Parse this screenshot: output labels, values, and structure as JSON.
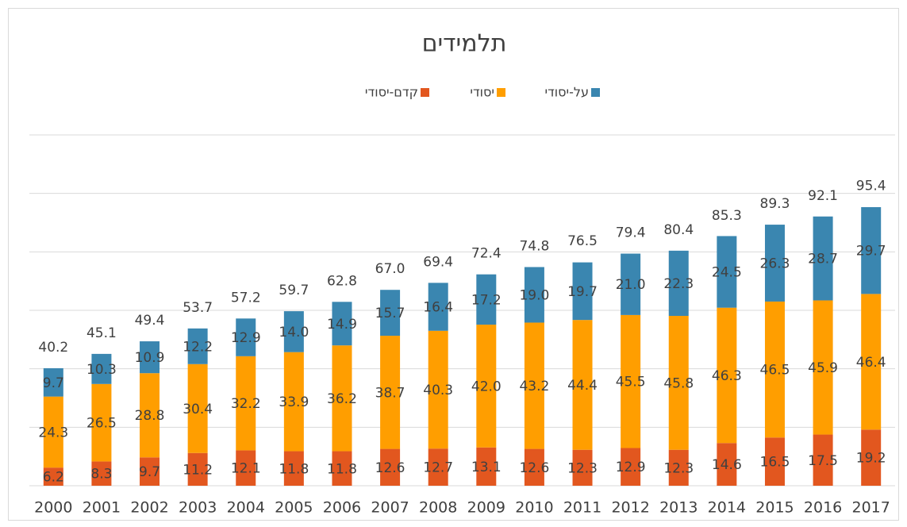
{
  "chart_data": {
    "type": "bar",
    "stacked": true,
    "title": "תלמידים",
    "categories": [
      "2000",
      "2001",
      "2002",
      "2003",
      "2004",
      "2005",
      "2006",
      "2007",
      "2008",
      "2009",
      "2010",
      "2011",
      "2012",
      "2013",
      "2014",
      "2015",
      "2016",
      "2017"
    ],
    "series": [
      {
        "name": "קדם-יסודי",
        "color": "#e2571f",
        "values": [
          6.2,
          8.3,
          9.7,
          11.2,
          12.1,
          11.8,
          11.8,
          12.6,
          12.7,
          13.1,
          12.6,
          12.3,
          12.9,
          12.3,
          14.6,
          16.5,
          17.5,
          19.2
        ]
      },
      {
        "name": "יסודי",
        "color": "#ff9e00",
        "values": [
          24.3,
          26.5,
          28.8,
          30.4,
          32.2,
          33.9,
          36.2,
          38.7,
          40.3,
          42.0,
          43.2,
          44.4,
          45.5,
          45.8,
          46.3,
          46.5,
          45.9,
          46.4
        ],
        "value_labels": [
          "24.3",
          "26.5",
          "28.8",
          "30.4",
          "32.2",
          "33.9",
          "36.2",
          "38.7",
          "40.3",
          "42.0",
          "43.2",
          "44.4",
          "45.5",
          "45.8",
          "46.3",
          "46.5",
          "45.9",
          "46.4"
        ]
      },
      {
        "name": "על-יסודי",
        "color": "#3a86b0",
        "values": [
          9.7,
          10.3,
          10.9,
          12.2,
          12.9,
          14.0,
          14.9,
          15.7,
          16.4,
          17.2,
          19.0,
          19.7,
          21.0,
          22.3,
          24.5,
          26.3,
          28.7,
          29.7
        ],
        "value_labels": [
          "9.7",
          "10.3",
          "10.9",
          "12.2",
          "12.9",
          "14.0",
          "14.9",
          "15.7",
          "16.4",
          "17.2",
          "19.0",
          "19.7",
          "21.0",
          "22.3",
          "24.5",
          "26.3",
          "28.7",
          "29.7"
        ]
      }
    ],
    "totals": [
      40.2,
      45.1,
      49.4,
      53.7,
      57.2,
      59.7,
      62.8,
      67.0,
      69.4,
      72.4,
      74.8,
      76.5,
      79.4,
      80.4,
      85.3,
      89.3,
      92.1,
      95.4
    ],
    "total_labels": [
      "40.2",
      "45.1",
      "49.4",
      "53.7",
      "57.2",
      "59.7",
      "62.8",
      "67.0",
      "69.4",
      "72.4",
      "74.8",
      "76.5",
      "79.4",
      "80.4",
      "85.3",
      "89.3",
      "92.1",
      "95.4"
    ],
    "ylim": [
      0,
      120
    ],
    "yticks": [
      0,
      20,
      40,
      60,
      80,
      100,
      120
    ],
    "grid": true
  }
}
